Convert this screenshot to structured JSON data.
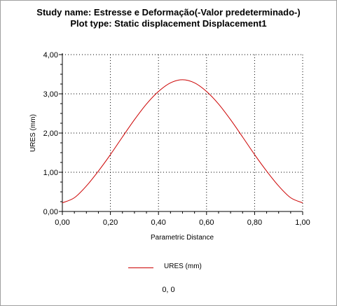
{
  "header": {
    "study_line": "Study name: Estresse e Deformação(-Valor predeterminado-)",
    "plot_line": "Plot type: Static displacement Displacement1"
  },
  "status": {
    "coordinates": "0, 0"
  },
  "colors": {
    "series": "#cc0000",
    "grid": "#000000",
    "axis": "#000000"
  },
  "chart_data": {
    "type": "line",
    "title": "",
    "xlabel": "Parametric Distance",
    "ylabel": "URES (mm)",
    "xlim": [
      0,
      1
    ],
    "ylim": [
      0,
      4
    ],
    "xticks": [
      0,
      0.2,
      0.4,
      0.6,
      0.8,
      1.0
    ],
    "xtick_labels": [
      "0,00",
      "0,20",
      "0,40",
      "0,60",
      "0,80",
      "1,00"
    ],
    "yticks": [
      0,
      1,
      2,
      3,
      4
    ],
    "ytick_labels": [
      "0,00",
      "1,00",
      "2,00",
      "3,00",
      "4,00"
    ],
    "grid": true,
    "legend_position": "bottom-center",
    "series": [
      {
        "name": "URES (mm)",
        "x": [
          0.0,
          0.05,
          0.1,
          0.15,
          0.2,
          0.25,
          0.3,
          0.35,
          0.4,
          0.45,
          0.5,
          0.55,
          0.6,
          0.65,
          0.7,
          0.75,
          0.8,
          0.85,
          0.9,
          0.95,
          1.0
        ],
        "y": [
          0.22,
          0.35,
          0.65,
          1.03,
          1.45,
          1.9,
          2.34,
          2.74,
          3.06,
          3.28,
          3.36,
          3.28,
          3.06,
          2.74,
          2.34,
          1.9,
          1.45,
          1.03,
          0.65,
          0.35,
          0.22
        ]
      }
    ]
  }
}
